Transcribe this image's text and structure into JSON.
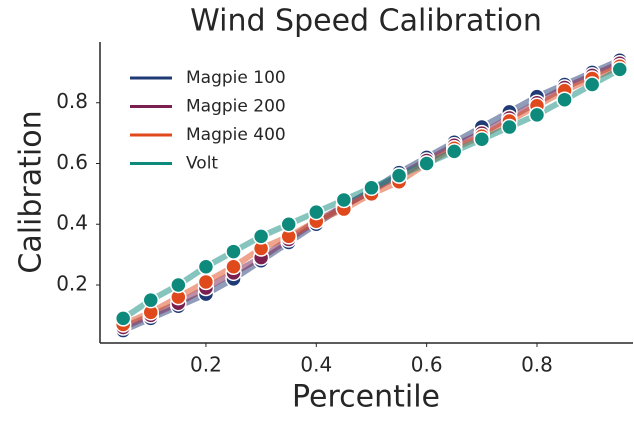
{
  "chart_data": {
    "type": "line",
    "title": "Wind Speed Calibration",
    "xlabel": "Percentile",
    "ylabel": "Calibration",
    "x": [
      0.05,
      0.1,
      0.15,
      0.2,
      0.25,
      0.3,
      0.35,
      0.4,
      0.45,
      0.5,
      0.55,
      0.6,
      0.65,
      0.7,
      0.75,
      0.8,
      0.85,
      0.9,
      0.95
    ],
    "series": [
      {
        "name": "Magpie 100",
        "color": "#1f3a75",
        "values": [
          0.05,
          0.09,
          0.13,
          0.17,
          0.22,
          0.28,
          0.34,
          0.4,
          0.46,
          0.51,
          0.57,
          0.62,
          0.67,
          0.72,
          0.77,
          0.82,
          0.86,
          0.9,
          0.94
        ]
      },
      {
        "name": "Magpie 200",
        "color": "#7a1f4f",
        "values": [
          0.06,
          0.1,
          0.14,
          0.19,
          0.24,
          0.29,
          0.35,
          0.41,
          0.46,
          0.51,
          0.56,
          0.61,
          0.66,
          0.7,
          0.75,
          0.8,
          0.85,
          0.89,
          0.93
        ]
      },
      {
        "name": "Magpie 400",
        "color": "#e0491b",
        "values": [
          0.07,
          0.11,
          0.16,
          0.21,
          0.26,
          0.32,
          0.36,
          0.41,
          0.45,
          0.5,
          0.54,
          0.6,
          0.65,
          0.69,
          0.74,
          0.79,
          0.84,
          0.88,
          0.92
        ]
      },
      {
        "name": "Volt",
        "color": "#0e8a7d",
        "values": [
          0.09,
          0.15,
          0.2,
          0.26,
          0.31,
          0.36,
          0.4,
          0.44,
          0.48,
          0.52,
          0.56,
          0.6,
          0.64,
          0.68,
          0.72,
          0.76,
          0.81,
          0.86,
          0.91
        ]
      }
    ],
    "xlim": [
      0.008,
      0.974
    ],
    "xticks": [
      0.2,
      0.4,
      0.6,
      0.8
    ],
    "ylim": [
      0.009,
      1.0
    ],
    "yticks": [
      0.2,
      0.4,
      0.6,
      0.8
    ],
    "grid": false,
    "legend": "upper left"
  }
}
